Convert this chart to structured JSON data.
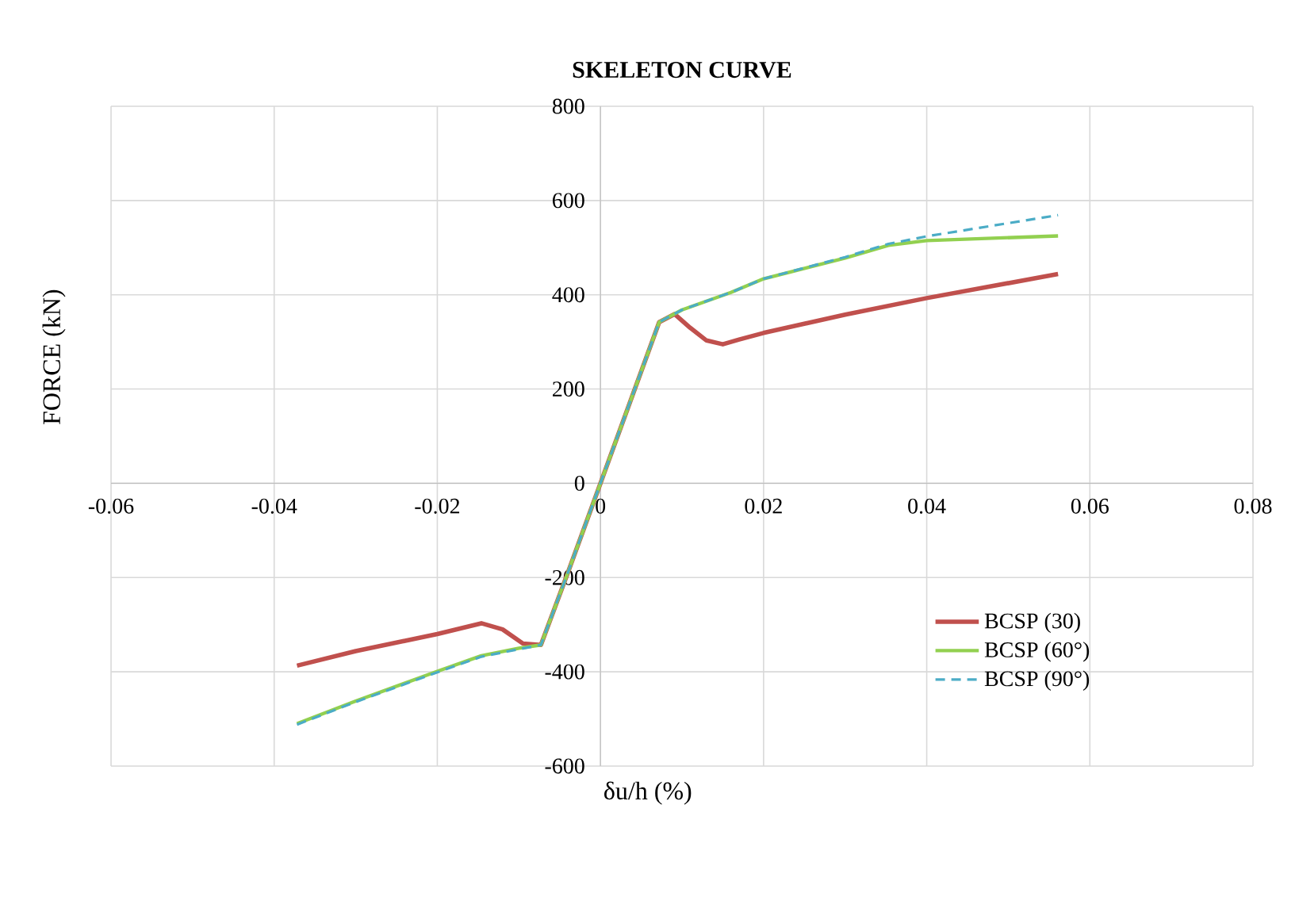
{
  "chart_data": {
    "type": "line",
    "title": "SKELETON CURVE",
    "xlabel": "δu/h (%)",
    "ylabel": "FORCE (kN)",
    "xlim": [
      -0.06,
      0.08
    ],
    "xticks": [
      -0.06,
      -0.04,
      -0.02,
      0,
      0.02,
      0.04,
      0.06,
      0.08
    ],
    "ylim": [
      -600,
      800
    ],
    "yticks": [
      -600,
      -400,
      -200,
      0,
      200,
      400,
      600,
      800
    ],
    "grid": true,
    "legend": "right",
    "marker": "none",
    "series": [
      {
        "name": "BCSP (30)",
        "color": "#c0504d",
        "line_style": "solid",
        "x": [
          -0.0372,
          -0.03,
          -0.02,
          -0.0146,
          -0.012,
          -0.0095,
          -0.0073,
          -0.004,
          0,
          0.004,
          0.0072,
          0.0091,
          0.011,
          0.013,
          0.015,
          0.017,
          0.02,
          0.03,
          0.04,
          0.0561
        ],
        "values": [
          -387,
          -356,
          -320,
          -297,
          -310,
          -340,
          -343,
          -190,
          0,
          190,
          342,
          359,
          330,
          303,
          295,
          305,
          319,
          358,
          393,
          444
        ]
      },
      {
        "name": "BCSP (60°)",
        "color": "#92d050",
        "line_style": "solid",
        "x": [
          -0.0372,
          -0.03,
          -0.02,
          -0.0146,
          -0.01,
          -0.0073,
          -0.004,
          0,
          0.004,
          0.0072,
          0.01,
          0.016,
          0.02,
          0.03,
          0.0353,
          0.04,
          0.0561
        ],
        "values": [
          -510,
          -462,
          -399,
          -366,
          -350,
          -343,
          -190,
          0,
          190,
          342,
          368,
          405,
          434,
          478,
          505,
          515,
          525
        ]
      },
      {
        "name": "BCSP (90°)",
        "color": "#4bacc6",
        "line_style": "dashed",
        "x": [
          -0.0372,
          -0.03,
          -0.02,
          -0.0146,
          -0.01,
          -0.0073,
          -0.004,
          0,
          0.004,
          0.0072,
          0.01,
          0.016,
          0.02,
          0.03,
          0.0353,
          0.04,
          0.0561
        ],
        "values": [
          -512,
          -464,
          -401,
          -368,
          -352,
          -343,
          -190,
          0,
          190,
          342,
          368,
          405,
          434,
          480,
          508,
          524,
          569
        ]
      }
    ]
  }
}
